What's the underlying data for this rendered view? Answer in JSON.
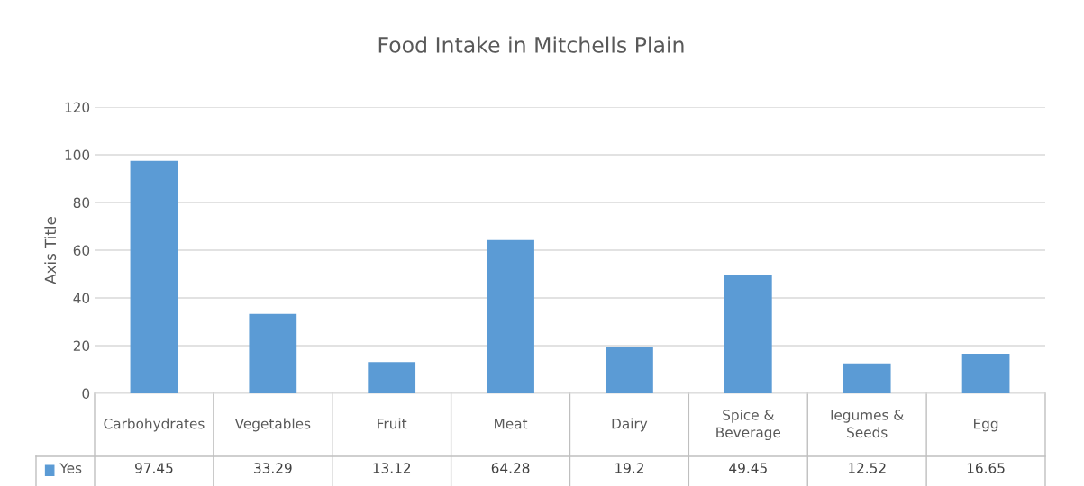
{
  "chart_data": {
    "type": "bar",
    "title": "Food Intake in Mitchells Plain",
    "ylabel": "Axis Title",
    "categories": [
      "Carbohydrates",
      "Vegetables",
      "Fruit",
      "Meat",
      "Dairy",
      "Spice & Beverage",
      "legumes & Seeds",
      "Egg"
    ],
    "series": [
      {
        "name": "Yes",
        "color": "#5b9bd5",
        "values": [
          97.45,
          33.29,
          13.12,
          64.28,
          19.2,
          49.45,
          12.52,
          16.65
        ]
      }
    ],
    "ylim": [
      0,
      120
    ],
    "yticks": [
      0,
      20,
      40,
      60,
      80,
      100,
      120
    ],
    "grid": "y",
    "data_labels": true,
    "legend": "bottom"
  }
}
